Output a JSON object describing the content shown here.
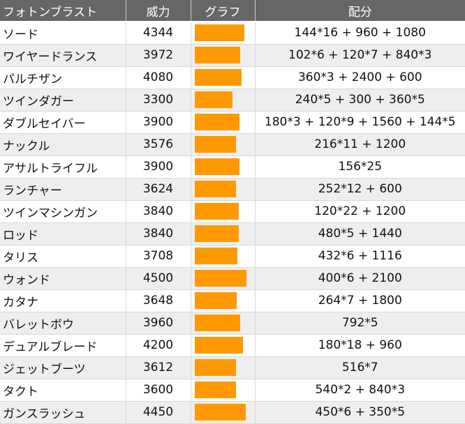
{
  "table": {
    "headers": {
      "name": "フォトンブラスト",
      "power": "威力",
      "graph": "グラフ",
      "distribution": "配分"
    },
    "bar_color": "#ff9900",
    "rows": [
      {
        "name": "ソード",
        "power": 4344,
        "distribution": "144*16 + 960 + 1080"
      },
      {
        "name": "ワイヤードランス",
        "power": 3972,
        "distribution": "102*6 + 120*7 + 840*3"
      },
      {
        "name": "パルチザン",
        "power": 4080,
        "distribution": "360*3 + 2400 + 600"
      },
      {
        "name": "ツインダガー",
        "power": 3300,
        "distribution": "240*5 + 300 + 360*5"
      },
      {
        "name": "ダブルセイバー",
        "power": 3900,
        "distribution": "180*3 + 120*9 + 1560 + 144*5"
      },
      {
        "name": "ナックル",
        "power": 3576,
        "distribution": "216*11 + 1200"
      },
      {
        "name": "アサルトライフル",
        "power": 3900,
        "distribution": "156*25"
      },
      {
        "name": "ランチャー",
        "power": 3624,
        "distribution": "252*12 + 600"
      },
      {
        "name": "ツインマシンガン",
        "power": 3840,
        "distribution": "120*22 + 1200"
      },
      {
        "name": "ロッド",
        "power": 3840,
        "distribution": "480*5 + 1440"
      },
      {
        "name": "タリス",
        "power": 3708,
        "distribution": "432*6 + 1116"
      },
      {
        "name": "ウォンド",
        "power": 4500,
        "distribution": "400*6 + 2100"
      },
      {
        "name": "カタナ",
        "power": 3648,
        "distribution": "264*7 + 1800"
      },
      {
        "name": "バレットボウ",
        "power": 3960,
        "distribution": "792*5"
      },
      {
        "name": "デュアルブレード",
        "power": 4200,
        "distribution": "180*18 + 960"
      },
      {
        "name": "ジェットブーツ",
        "power": 3612,
        "distribution": "516*7"
      },
      {
        "name": "タクト",
        "power": 3600,
        "distribution": "540*2 + 840*3"
      },
      {
        "name": "ガンスラッシュ",
        "power": 4450,
        "distribution": "450*6 + 350*5"
      }
    ]
  }
}
